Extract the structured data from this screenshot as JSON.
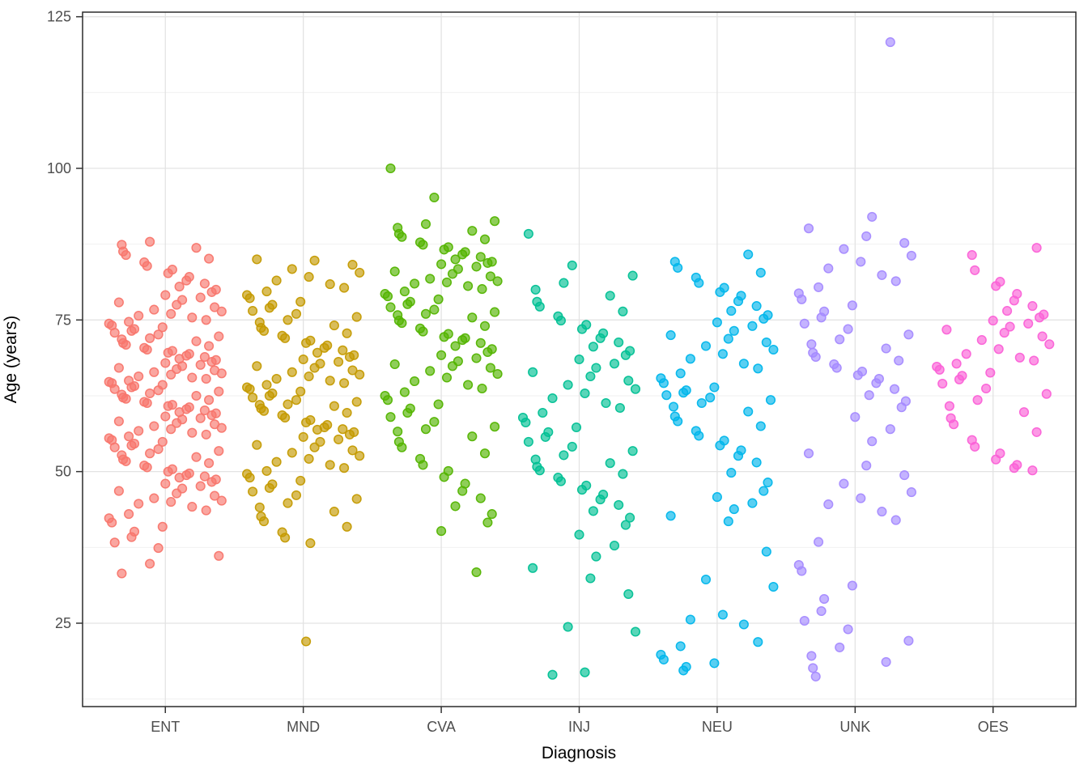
{
  "chart_data": {
    "type": "scatter",
    "subtype": "jittered-strip-plot",
    "title": "",
    "xlabel": "Diagnosis",
    "ylabel": "Age (years)",
    "categories": [
      "ENT",
      "MND",
      "CVA",
      "INJ",
      "NEU",
      "UNK",
      "OES"
    ],
    "y_ticks": [
      25,
      50,
      75,
      100,
      125
    ],
    "y_minor_gridlines": [
      12.5,
      37.5,
      62.5,
      87.5,
      112.5
    ],
    "ylim": [
      11.5,
      125.8
    ],
    "grid": "major-and-minor-horizontal, major-vertical-at-categories",
    "legend": "none",
    "panel_border": true,
    "point_alpha": 0.65,
    "colors": {
      "ENT": "#F8766D",
      "MND": "#C49A00",
      "CVA": "#53B400",
      "INJ": "#00C094",
      "NEU": "#00B6EB",
      "UNK": "#A58AFF",
      "OES": "#FB61D7",
      "grid_major": "#E3E3E3",
      "grid_minor": "#EFEFEF",
      "panel_border": "#2b2b2b",
      "tick_label": "#4D4D4D",
      "axis_title": "#000000"
    },
    "jitter_pattern": [
      -0.31,
      0.12,
      -0.05,
      0.33,
      -0.22,
      0.28,
      -0.4,
      0.02,
      0.19,
      -0.15,
      0.4,
      -0.3,
      0.08,
      -0.11,
      0.25,
      -0.36,
      0.36,
      -0.02,
      0.15,
      -0.26,
      0.05,
      -0.19,
      0.31,
      -0.08,
      0.22,
      -0.33,
      0.38,
      0.0,
      -0.24,
      0.1,
      -0.38,
      0.17,
      0.29,
      -0.13,
      0.04,
      -0.28,
      0.35
    ],
    "series": [
      {
        "name": "ENT",
        "color": "#F8766D",
        "ages": [
          33.2,
          34.8,
          36.1,
          37.4,
          38.3,
          39.2,
          40.1,
          40.9,
          41.6,
          42.3,
          43.0,
          43.6,
          44.2,
          44.7,
          45.0,
          45.2,
          45.6,
          46.0,
          46.4,
          46.8,
          47.2,
          47.6,
          48.0,
          48.3,
          48.7,
          49.0,
          49.2,
          49.4,
          49.7,
          50.0,
          50.4,
          50.7,
          51.0,
          51.4,
          51.7,
          52.0,
          52.4,
          52.7,
          53.0,
          53.4,
          53.7,
          54.0,
          54.3,
          54.6,
          54.9,
          55.2,
          55.5,
          55.8,
          56.1,
          56.4,
          56.7,
          57.0,
          57.2,
          57.5,
          57.8,
          58.0,
          58.3,
          58.6,
          58.8,
          59.1,
          59.3,
          59.6,
          59.8,
          60.1,
          60.3,
          60.6,
          60.8,
          61.0,
          61.3,
          61.5,
          61.8,
          62.0,
          62.2,
          62.5,
          62.7,
          62.9,
          63.2,
          63.4,
          63.6,
          63.9,
          64.1,
          64.3,
          64.6,
          64.8,
          65.0,
          65.3,
          65.5,
          65.7,
          66.0,
          66.2,
          66.4,
          66.7,
          66.9,
          67.1,
          67.4,
          67.6,
          67.9,
          68.1,
          68.4,
          68.6,
          68.9,
          69.1,
          69.4,
          69.6,
          69.9,
          70.1,
          70.4,
          70.7,
          70.9,
          71.2,
          71.5,
          71.8,
          72.0,
          72.3,
          72.6,
          72.9,
          73.2,
          73.5,
          73.8,
          74.1,
          74.4,
          74.7,
          75.0,
          75.4,
          75.7,
          76.0,
          76.4,
          76.7,
          77.1,
          77.5,
          77.9,
          78.3,
          78.7,
          79.1,
          79.6,
          80.0,
          80.5,
          81.0,
          81.5,
          82.1,
          82.7,
          83.3,
          83.9,
          84.5,
          85.1,
          85.7,
          86.3,
          86.9,
          87.4,
          87.9
        ]
      },
      {
        "name": "MND",
        "color": "#C49A00",
        "ages": [
          22.0,
          38.2,
          39.1,
          40.0,
          40.9,
          41.8,
          42.6,
          43.4,
          44.1,
          44.8,
          45.5,
          46.1,
          46.7,
          47.3,
          47.9,
          48.5,
          49.0,
          49.6,
          50.1,
          50.6,
          51.1,
          51.6,
          52.1,
          52.6,
          53.1,
          53.5,
          54.0,
          54.4,
          54.9,
          55.3,
          55.7,
          56.1,
          56.5,
          56.9,
          57.0,
          57.3,
          57.7,
          58.1,
          58.5,
          58.9,
          59.3,
          59.7,
          60.0,
          60.4,
          60.8,
          61.0,
          61.1,
          61.5,
          61.8,
          62.2,
          62.5,
          62.9,
          63.2,
          63.6,
          63.9,
          64.3,
          64.6,
          65.0,
          65.3,
          65.7,
          66.0,
          66.4,
          66.7,
          67.1,
          67.4,
          67.8,
          68.1,
          68.5,
          68.9,
          69.2,
          69.6,
          70.0,
          70.4,
          70.8,
          71.2,
          71.6,
          72.0,
          72.4,
          72.8,
          73.2,
          73.7,
          74.1,
          74.6,
          75.0,
          75.5,
          76.0,
          76.5,
          77.0,
          77.5,
          78.0,
          78.6,
          79.1,
          79.7,
          80.3,
          80.9,
          81.5,
          82.1,
          82.8,
          83.4,
          84.1,
          84.8,
          85.0
        ]
      },
      {
        "name": "CVA",
        "color": "#53B400",
        "ages": [
          33.4,
          40.2,
          41.6,
          43.0,
          44.3,
          45.6,
          46.8,
          48.0,
          49.1,
          50.1,
          51.1,
          52.1,
          53.0,
          54.0,
          54.9,
          55.8,
          56.6,
          57.0,
          57.4,
          58.2,
          59.0,
          59.7,
          60.4,
          61.1,
          61.8,
          62.5,
          63.1,
          63.7,
          64.3,
          64.9,
          65.5,
          66.1,
          66.6,
          67.1,
          67.4,
          67.7,
          68.2,
          68.7,
          69.2,
          69.7,
          70.2,
          70.7,
          71.2,
          71.7,
          72.0,
          72.2,
          72.7,
          73.1,
          73.6,
          74.0,
          74.5,
          74.9,
          75.4,
          75.8,
          76.0,
          76.3,
          76.7,
          77.1,
          77.6,
          78.0,
          78.4,
          78.9,
          79.3,
          79.7,
          80.1,
          80.6,
          81.0,
          81.2,
          81.4,
          81.8,
          82.2,
          82.6,
          83.0,
          83.4,
          83.8,
          84.2,
          84.4,
          84.6,
          85.0,
          85.4,
          85.8,
          86.2,
          86.6,
          87.0,
          87.4,
          87.8,
          88.3,
          88.7,
          89.2,
          89.7,
          90.2,
          90.8,
          91.3,
          95.2,
          100.0
        ]
      },
      {
        "name": "INJ",
        "color": "#00C094",
        "ages": [
          16.5,
          16.9,
          23.6,
          24.4,
          29.8,
          32.4,
          34.1,
          36.0,
          37.8,
          39.6,
          41.2,
          42.4,
          43.5,
          44.5,
          45.4,
          46.2,
          47.0,
          47.7,
          48.4,
          49.0,
          49.6,
          50.2,
          50.8,
          51.4,
          52.0,
          52.7,
          53.4,
          54.1,
          54.9,
          55.7,
          56.5,
          57.3,
          58.1,
          58.9,
          59.7,
          60.5,
          61.3,
          62.1,
          62.9,
          63.6,
          64.3,
          65.0,
          65.7,
          66.4,
          67.1,
          67.8,
          68.5,
          69.2,
          69.9,
          70.6,
          71.3,
          72.0,
          72.8,
          73.5,
          74.2,
          74.9,
          75.6,
          76.4,
          77.2,
          78.0,
          79.0,
          80.0,
          81.1,
          82.3,
          84.0,
          89.2
        ]
      },
      {
        "name": "NEU",
        "color": "#00B6EB",
        "ages": [
          17.2,
          17.8,
          18.4,
          19.0,
          19.8,
          21.2,
          21.9,
          24.8,
          25.6,
          26.4,
          31.0,
          32.2,
          36.8,
          41.8,
          42.7,
          43.8,
          44.8,
          45.8,
          46.8,
          48.2,
          49.8,
          51.5,
          52.6,
          53.5,
          54.3,
          55.1,
          55.9,
          56.7,
          57.5,
          58.3,
          59.1,
          59.9,
          60.7,
          61.3,
          61.8,
          62.2,
          62.6,
          63.0,
          63.4,
          63.9,
          64.6,
          65.4,
          66.2,
          67.0,
          67.8,
          68.6,
          69.4,
          70.1,
          70.7,
          71.3,
          71.9,
          72.5,
          73.2,
          74.0,
          74.6,
          75.2,
          75.8,
          76.5,
          77.3,
          78.1,
          79.0,
          79.6,
          80.3,
          81.1,
          82.0,
          82.8,
          83.6,
          84.6,
          85.8
        ]
      },
      {
        "name": "UNK",
        "color": "#A58AFF",
        "ages": [
          16.2,
          17.6,
          18.6,
          19.6,
          21.0,
          22.1,
          24.0,
          25.4,
          27.0,
          29.0,
          31.2,
          33.6,
          34.6,
          38.4,
          42.0,
          43.4,
          44.6,
          45.6,
          46.6,
          48.0,
          49.4,
          51.0,
          53.0,
          55.0,
          57.0,
          59.0,
          60.6,
          61.6,
          62.6,
          63.6,
          64.6,
          65.3,
          65.9,
          66.5,
          67.1,
          67.7,
          68.3,
          68.9,
          69.6,
          70.3,
          71.0,
          71.8,
          72.6,
          73.5,
          74.4,
          75.4,
          76.4,
          77.4,
          78.4,
          79.4,
          80.4,
          81.4,
          82.4,
          83.5,
          84.6,
          85.6,
          86.7,
          87.7,
          88.8,
          90.1,
          92.0,
          120.8
        ]
      },
      {
        "name": "OES",
        "color": "#FB61D7",
        "ages": [
          50.2,
          50.6,
          51.1,
          52.0,
          53.0,
          54.1,
          55.2,
          56.5,
          57.8,
          58.8,
          59.8,
          60.8,
          61.8,
          62.8,
          63.7,
          64.5,
          65.2,
          65.8,
          66.3,
          66.8,
          67.3,
          67.8,
          68.3,
          68.8,
          69.4,
          70.2,
          71.0,
          71.7,
          72.3,
          72.9,
          73.4,
          73.9,
          74.4,
          74.9,
          75.4,
          75.9,
          76.5,
          77.3,
          78.2,
          79.3,
          80.6,
          81.3,
          83.2,
          85.7,
          86.9
        ]
      }
    ]
  }
}
